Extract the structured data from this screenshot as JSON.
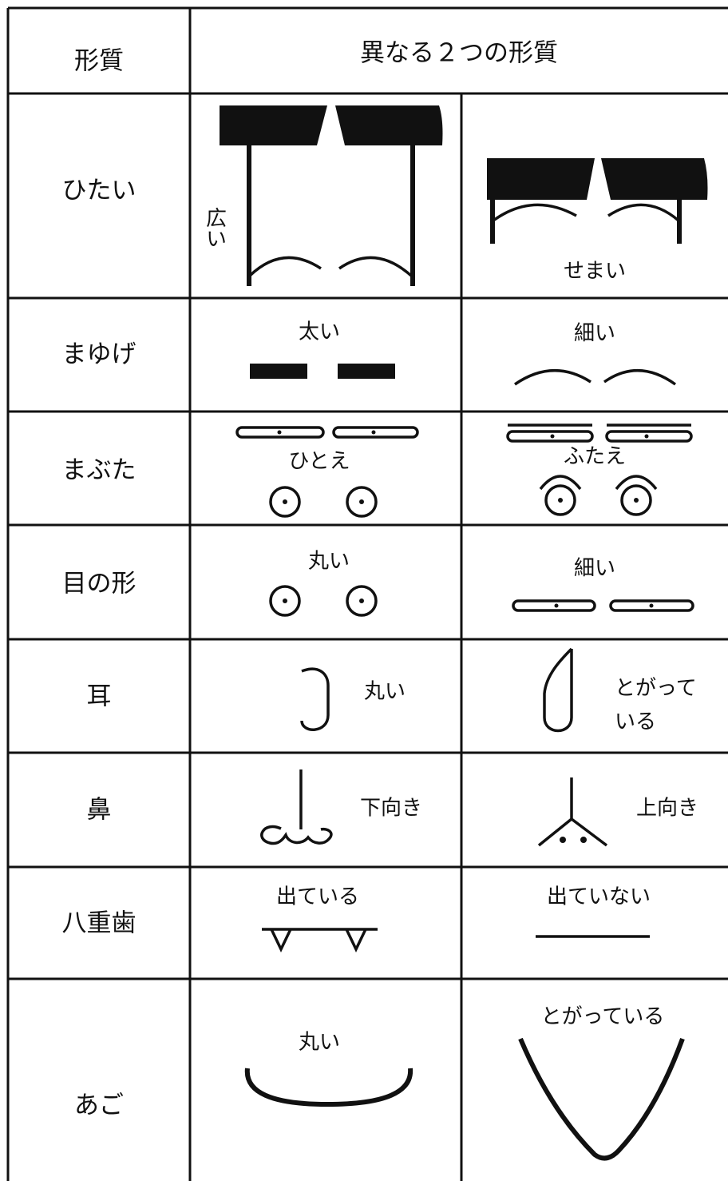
{
  "table": {
    "header": [
      "形質",
      "異なる２つの形質"
    ],
    "rows": [
      {
        "trait": "ひたい",
        "left": "広い",
        "right": "せまい"
      },
      {
        "trait": "まゆげ",
        "left": "太い",
        "right": "細い"
      },
      {
        "trait": "まぶた",
        "left": "ひとえ",
        "right": "ふたえ"
      },
      {
        "trait": "目の形",
        "left": "丸い",
        "right": "細い"
      },
      {
        "trait": "耳",
        "left": "丸い",
        "right": [
          "とがって",
          "いる"
        ]
      },
      {
        "trait": "鼻",
        "left": "下向き",
        "right": "上向き"
      },
      {
        "trait": "八重歯",
        "left": "出ている",
        "right": "出ていない"
      },
      {
        "trait": "あご",
        "left": "丸い",
        "right": "とがっている"
      }
    ]
  }
}
